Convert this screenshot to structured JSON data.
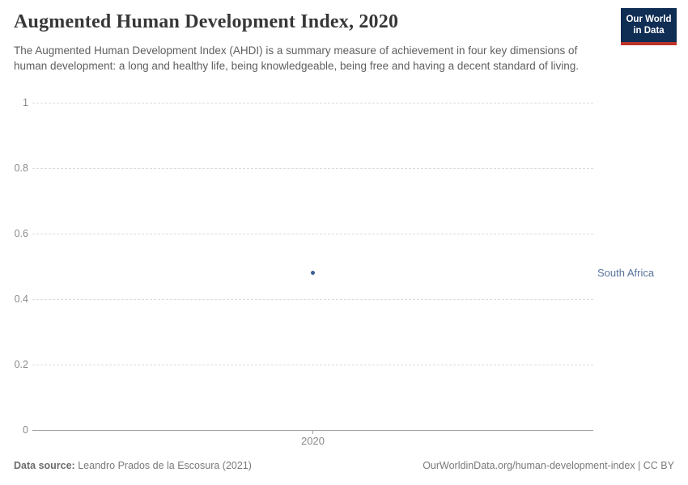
{
  "header": {
    "title": "Augmented Human Development Index, 2020",
    "subtitle": "The Augmented Human Development Index (AHDI) is a summary measure of achievement in four key dimensions of human development: a long and healthy life, being knowledgeable, being free and having a decent standard of living.",
    "logo_line1": "Our World",
    "logo_line2": "in Data"
  },
  "chart_data": {
    "type": "scatter",
    "title": "Augmented Human Development Index, 2020",
    "series": [
      {
        "name": "South Africa",
        "x": [
          2020
        ],
        "y": [
          0.48
        ]
      }
    ],
    "xlabel": "",
    "ylabel": "",
    "xlim": [
      2020,
      2020
    ],
    "ylim": [
      0,
      1
    ],
    "yticks": [
      1,
      0.8,
      0.6,
      0.4,
      0.2,
      0
    ],
    "ytick_labels": [
      "1",
      "0.8",
      "0.6",
      "0.4",
      "0.2",
      "0"
    ],
    "xticks": [
      2020
    ],
    "xtick_labels": [
      "2020"
    ],
    "grid": "horizontal-dashed",
    "legend_position": "right-inline",
    "colors": {
      "point": "#3d5e95",
      "entity_label": "#58739c",
      "gridline": "#dcdcdc",
      "axis_line": "#a3a3a3",
      "tick_label": "#8a8a8a",
      "logo_bg": "#102d54",
      "logo_underline": "#bc3228"
    }
  },
  "footer": {
    "source_label": "Data source:",
    "source_value": "Leandro Prados de la Escosura (2021)",
    "note_right": "OurWorldinData.org/human-development-index | CC BY"
  }
}
